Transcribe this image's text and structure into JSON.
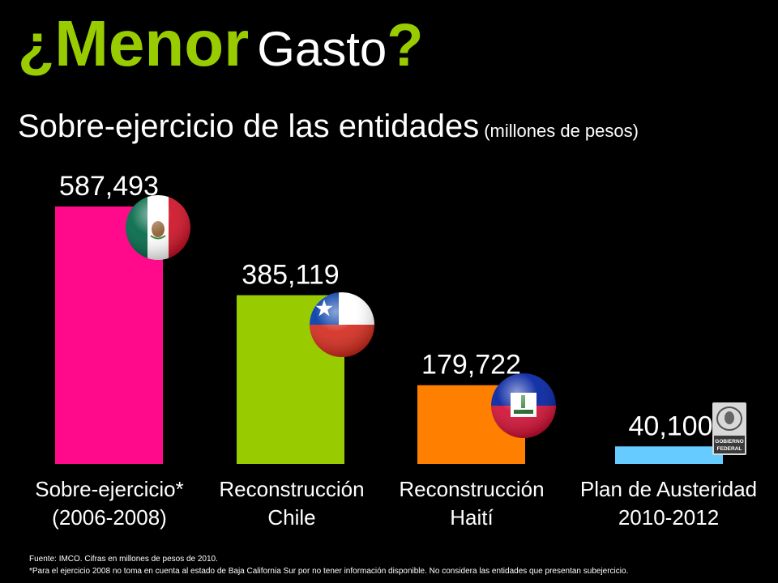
{
  "title": {
    "open_q": "¿",
    "menor": "Menor",
    "gasto": "Gasto",
    "close_q": "?"
  },
  "subtitle": {
    "main": "Sobre-ejercicio de las entidades",
    "unit": "(millones de pesos)"
  },
  "colors": {
    "accent": "#99cc00",
    "background": "#000000"
  },
  "chart_data": {
    "type": "bar",
    "categories": [
      [
        "Sobre-ejercicio*",
        "(2006-2008)"
      ],
      [
        "Reconstrucción",
        "Chile"
      ],
      [
        "Reconstrucción",
        "Haití"
      ],
      [
        "Plan de Austeridad",
        "2010-2012"
      ]
    ],
    "values": [
      587493,
      385119,
      179722,
      40100
    ],
    "value_labels": [
      "587,493",
      "385,119",
      "179,722",
      "40,100"
    ],
    "colors": [
      "#ff0a8a",
      "#99cc00",
      "#ff7f00",
      "#66ccff"
    ],
    "icons": [
      "mexico-flag-icon",
      "chile-flag-icon",
      "haiti-flag-icon",
      "gobierno-federal-logo-icon"
    ],
    "logo_text": [
      "GOBIERNO",
      "FEDERAL"
    ],
    "grid": false,
    "legend": "none"
  },
  "footnotes": [
    "Fuente: IMCO. Cifras en millones de pesos de 2010.",
    "*Para el ejercicio 2008 no toma en cuenta al estado de Baja California Sur por no tener información disponible.  No considera las entidades que presentan subejercicio."
  ]
}
